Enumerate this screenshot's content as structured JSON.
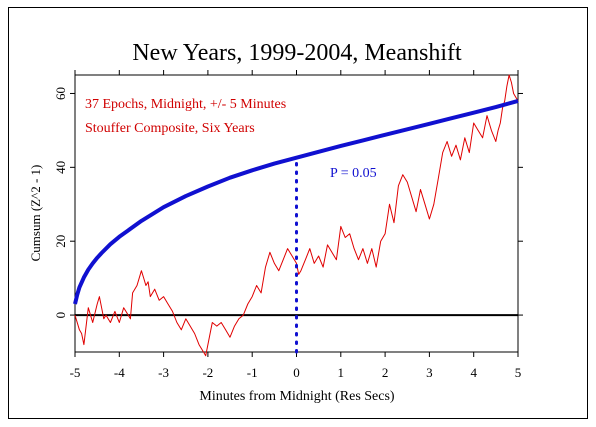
{
  "chart_data": {
    "type": "line",
    "title": "New Years, 1999-2004, Meanshift",
    "xlabel": "Minutes from Midnight (Res Secs)",
    "ylabel": "Cumsum (Z^2 - 1)",
    "xlim": [
      -5,
      5
    ],
    "ylim": [
      -10,
      65
    ],
    "x_ticks": [
      -5,
      -4,
      -3,
      -2,
      -1,
      0,
      1,
      2,
      3,
      4,
      5
    ],
    "x_tick_labels": [
      "-5",
      "-4",
      "-3",
      "-2",
      "-1",
      "0",
      "1",
      "2",
      "3",
      "4",
      "5"
    ],
    "y_ticks": [
      0,
      20,
      40,
      60
    ],
    "y_tick_labels": [
      "0",
      "20",
      "40",
      "60"
    ],
    "annotations": [
      "37 Epochs, Midnight, +/- 5 Minutes",
      "Stouffer Composite, Six Years"
    ],
    "p_label": "P = 0.05",
    "marker_x": 0,
    "zero_line": 0,
    "colors": {
      "cumsum": "#e00000",
      "envelope": "#1010d0",
      "annotation": "#d00000",
      "axis": "#000000"
    },
    "series": [
      {
        "style": "cumsum",
        "x": [
          -5.0,
          -4.9,
          -4.85,
          -4.8,
          -4.7,
          -4.6,
          -4.5,
          -4.45,
          -4.4,
          -4.35,
          -4.3,
          -4.2,
          -4.1,
          -4.0,
          -3.9,
          -3.8,
          -3.75,
          -3.7,
          -3.6,
          -3.5,
          -3.45,
          -3.4,
          -3.35,
          -3.3,
          -3.2,
          -3.1,
          -3.0,
          -2.9,
          -2.8,
          -2.7,
          -2.6,
          -2.5,
          -2.4,
          -2.3,
          -2.2,
          -2.1,
          -2.05,
          -2.0,
          -1.95,
          -1.9,
          -1.8,
          -1.7,
          -1.6,
          -1.5,
          -1.4,
          -1.3,
          -1.2,
          -1.1,
          -1.0,
          -0.9,
          -0.8,
          -0.7,
          -0.6,
          -0.5,
          -0.4,
          -0.3,
          -0.2,
          -0.1,
          0.0,
          0.05,
          0.1,
          0.2,
          0.3,
          0.4,
          0.5,
          0.6,
          0.7,
          0.8,
          0.9,
          1.0,
          1.1,
          1.2,
          1.3,
          1.4,
          1.5,
          1.6,
          1.7,
          1.8,
          1.9,
          2.0,
          2.1,
          2.2,
          2.3,
          2.4,
          2.5,
          2.6,
          2.7,
          2.8,
          2.9,
          3.0,
          3.1,
          3.2,
          3.3,
          3.4,
          3.5,
          3.6,
          3.7,
          3.8,
          3.9,
          4.0,
          4.1,
          4.2,
          4.3,
          4.4,
          4.5,
          4.55,
          4.6,
          4.65,
          4.7,
          4.75,
          4.8,
          4.85,
          4.9,
          4.95,
          5.0
        ],
        "values": [
          0,
          -4,
          -5,
          -8,
          2,
          -2,
          3,
          5,
          2,
          -1,
          0,
          -2,
          1,
          -2,
          2,
          0,
          -1,
          6,
          8,
          12,
          10,
          8,
          9,
          5,
          7,
          4,
          5,
          3,
          1,
          -2,
          -4,
          -1,
          -3,
          -5,
          -8,
          -10,
          -11,
          -8,
          -5,
          -2,
          -3,
          -2,
          -4,
          -6,
          -3,
          -1,
          0,
          3,
          5,
          8,
          6,
          13,
          17,
          14,
          12,
          15,
          18,
          16,
          14,
          11,
          12,
          15,
          18,
          14,
          16,
          13,
          19,
          17,
          15,
          24,
          21,
          22,
          18,
          15,
          18,
          14,
          18,
          13,
          20,
          22,
          30,
          25,
          35,
          38,
          36,
          32,
          28,
          34,
          30,
          26,
          30,
          37,
          44,
          47,
          43,
          46,
          42,
          48,
          44,
          52,
          50,
          48,
          54,
          50,
          47,
          50,
          52,
          56,
          58,
          62,
          65,
          63,
          60,
          59,
          58
        ]
      },
      {
        "style": "envelope",
        "x": [
          -5.0,
          -4.95,
          -4.9,
          -4.8,
          -4.7,
          -4.6,
          -4.5,
          -4.4,
          -4.2,
          -4.0,
          -3.5,
          -3.0,
          -2.5,
          -2.0,
          -1.5,
          -1.0,
          -0.5,
          0.0,
          0.5,
          1.0,
          1.5,
          2.0,
          2.5,
          3.0,
          3.5,
          4.0,
          4.5,
          5.0
        ],
        "values": [
          3.0,
          5.5,
          7.5,
          10.2,
          12.3,
          14.0,
          15.5,
          16.8,
          19.2,
          21.2,
          25.5,
          29.2,
          32.2,
          34.8,
          37.2,
          39.2,
          41.0,
          42.6,
          44.2,
          45.8,
          47.3,
          48.8,
          50.3,
          51.8,
          53.3,
          54.8,
          56.3,
          58.0
        ]
      },
      {
        "style": "dotted-marker",
        "x": [
          0,
          0
        ],
        "values": [
          -10,
          42
        ]
      }
    ]
  }
}
